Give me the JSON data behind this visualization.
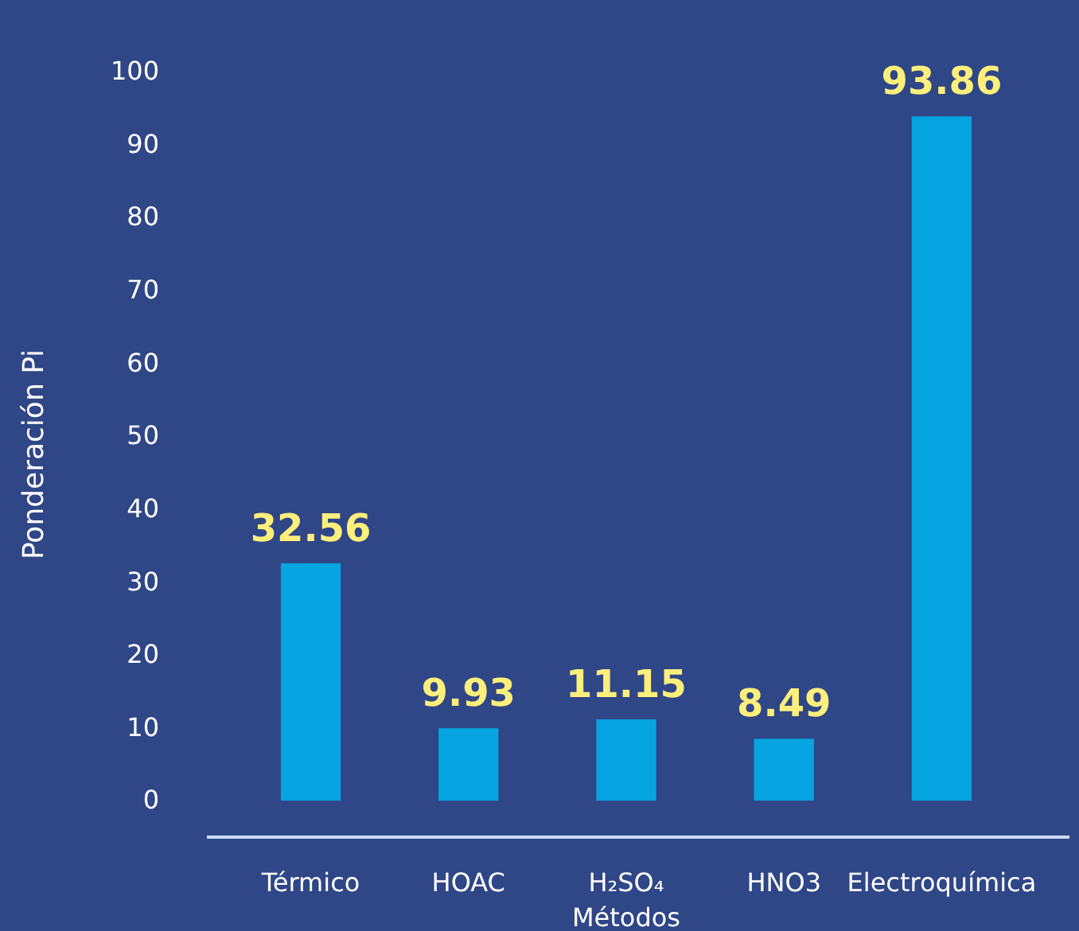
{
  "chart_data": {
    "type": "bar",
    "xlabel": "Métodos",
    "ylabel": "Ponderación Pi",
    "categories": [
      "Térmico",
      "HOAC",
      "H₂SO₄",
      "HNO3",
      "Electroquímica"
    ],
    "values": [
      32.56,
      9.93,
      11.15,
      8.49,
      93.86
    ],
    "color": "#06a4e0",
    "ylim": [
      -5,
      100
    ],
    "yticks": [
      0,
      10,
      20,
      30,
      40,
      50,
      60,
      70,
      80,
      90,
      100
    ],
    "grid": false,
    "data_labels": true
  }
}
